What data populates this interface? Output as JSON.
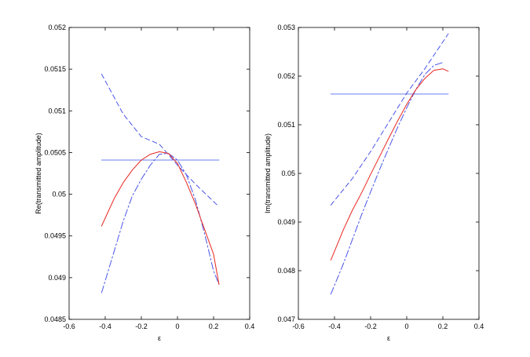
{
  "chart_data": [
    {
      "type": "line",
      "xlabel": "ε",
      "ylabel": "Re(transmitted amplitude)",
      "xlim": [
        -0.6,
        0.4
      ],
      "ylim": [
        0.0485,
        0.052
      ],
      "xticks": [
        -0.6,
        -0.4,
        -0.2,
        0,
        0.2,
        0.4
      ],
      "xtick_labels": [
        "-0.6",
        "-0.4",
        "-0.2",
        "0",
        "0.2",
        "0.4"
      ],
      "yticks": [
        0.0485,
        0.049,
        0.0495,
        0.05,
        0.0505,
        0.051,
        0.0515,
        0.052
      ],
      "ytick_labels": [
        "0.0485",
        "0.049",
        "0.0495",
        "0.05",
        "0.0505",
        "0.051",
        "0.0515",
        "0.052"
      ],
      "grid": false,
      "series": [
        {
          "style": "solid",
          "color": "#6a7fef",
          "x": [
            -0.42,
            0.23
          ],
          "y": [
            0.05041,
            0.05041
          ]
        },
        {
          "style": "dashed",
          "color": "#4a55e8",
          "x": [
            -0.42,
            -0.3,
            -0.2,
            -0.1,
            0.0,
            0.1,
            0.23
          ],
          "y": [
            0.05144,
            0.05096,
            0.05069,
            0.0506,
            0.05035,
            0.05012,
            0.04985
          ]
        },
        {
          "style": "dashdot",
          "color": "#4a55e8",
          "x": [
            -0.42,
            -0.35,
            -0.3,
            -0.25,
            -0.2,
            -0.15,
            -0.1,
            -0.05,
            0.0,
            0.05,
            0.1,
            0.15,
            0.2,
            0.23
          ],
          "y": [
            0.04882,
            0.04932,
            0.04968,
            0.04998,
            0.05018,
            0.05035,
            0.05048,
            0.05049,
            0.05041,
            0.05023,
            0.04993,
            0.04953,
            0.04908,
            0.04892
          ]
        },
        {
          "style": "solid",
          "color": "#e8271f",
          "x": [
            -0.42,
            -0.35,
            -0.3,
            -0.25,
            -0.2,
            -0.15,
            -0.1,
            -0.05,
            0.0,
            0.05,
            0.1,
            0.15,
            0.2,
            0.23
          ],
          "y": [
            0.04962,
            0.04995,
            0.05014,
            0.05029,
            0.05041,
            0.05048,
            0.05051,
            0.05049,
            0.05037,
            0.05014,
            0.04988,
            0.04958,
            0.04928,
            0.04892
          ]
        }
      ]
    },
    {
      "type": "line",
      "xlabel": "ε",
      "ylabel": "Im(transmitted amplitude)",
      "xlim": [
        -0.6,
        0.4
      ],
      "ylim": [
        0.047,
        0.053
      ],
      "xticks": [
        -0.6,
        -0.4,
        -0.2,
        0,
        0.2,
        0.4
      ],
      "xtick_labels": [
        "-0.6",
        "-0.4",
        "-0.2",
        "0",
        "0.2",
        "0.4"
      ],
      "yticks": [
        0.047,
        0.048,
        0.049,
        0.05,
        0.051,
        0.052,
        0.053
      ],
      "ytick_labels": [
        "0.047",
        "0.048",
        "0.049",
        "0.05",
        "0.051",
        "0.052",
        "0.053"
      ],
      "grid": false,
      "series": [
        {
          "style": "solid",
          "color": "#6a7fef",
          "x": [
            -0.42,
            0.23
          ],
          "y": [
            0.05163,
            0.05163
          ]
        },
        {
          "style": "dashed",
          "color": "#4a55e8",
          "x": [
            -0.42,
            -0.3,
            -0.2,
            -0.1,
            0.0,
            0.1,
            0.23
          ],
          "y": [
            0.04935,
            0.0499,
            0.05045,
            0.05105,
            0.05165,
            0.05215,
            0.05287
          ]
        },
        {
          "style": "dashdot",
          "color": "#4a55e8",
          "x": [
            -0.42,
            -0.35,
            -0.3,
            -0.25,
            -0.2,
            -0.15,
            -0.1,
            -0.05,
            0.0,
            0.05,
            0.1,
            0.15,
            0.2
          ],
          "y": [
            0.04752,
            0.04815,
            0.04865,
            0.04915,
            0.04962,
            0.05008,
            0.05052,
            0.05095,
            0.05135,
            0.05172,
            0.05203,
            0.05222,
            0.05228
          ]
        },
        {
          "style": "solid",
          "color": "#e8271f",
          "x": [
            -0.42,
            -0.35,
            -0.3,
            -0.25,
            -0.2,
            -0.15,
            -0.1,
            -0.05,
            0.0,
            0.05,
            0.1,
            0.15,
            0.2,
            0.23
          ],
          "y": [
            0.04822,
            0.04885,
            0.04925,
            0.0496,
            0.04998,
            0.05035,
            0.05072,
            0.05108,
            0.05142,
            0.05172,
            0.05195,
            0.05212,
            0.05215,
            0.0521
          ]
        }
      ]
    }
  ]
}
